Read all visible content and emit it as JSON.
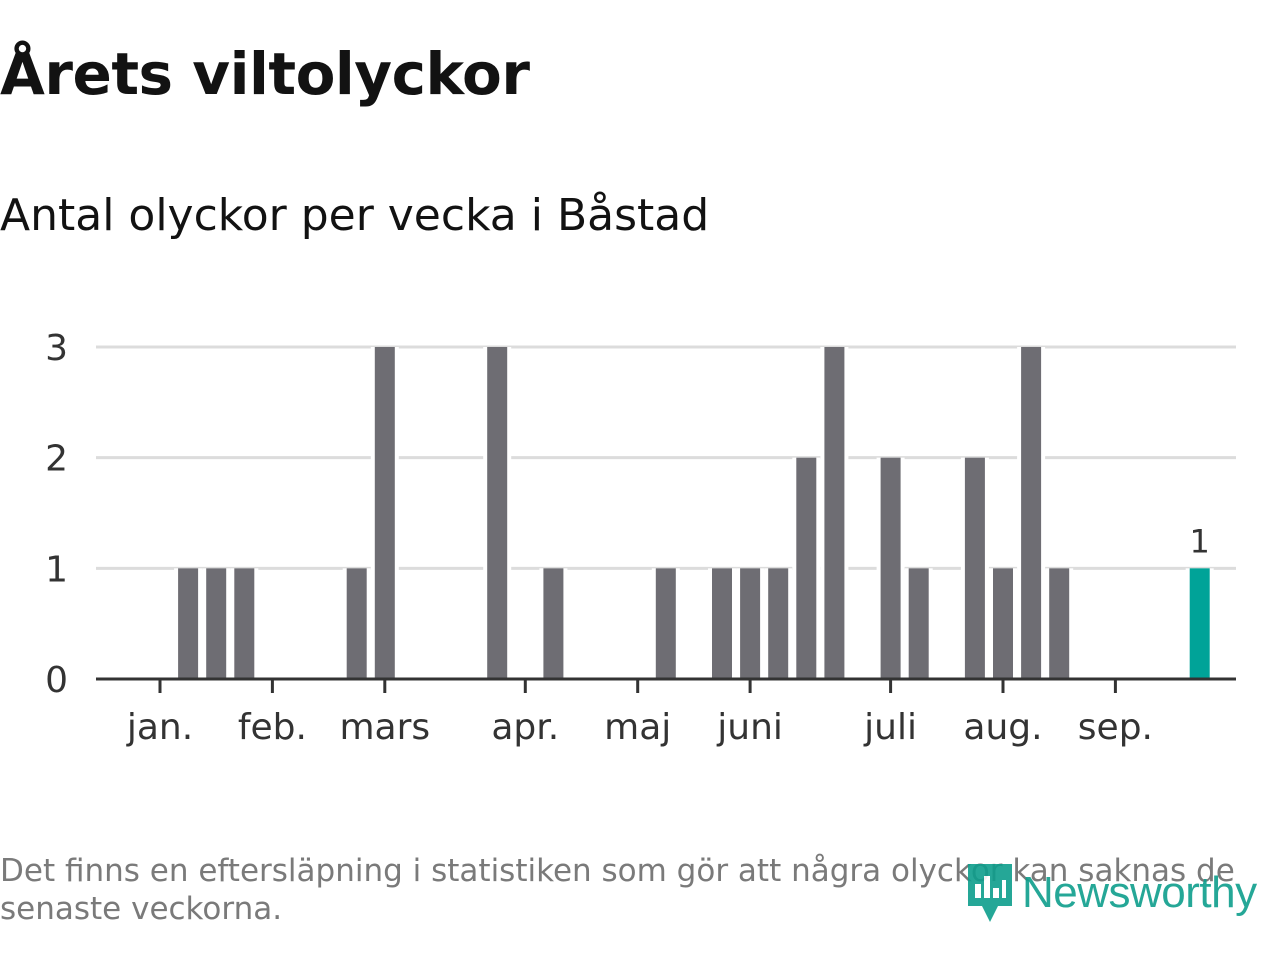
{
  "title": "Årets viltolyckor",
  "subtitle": "Antal olyckor per vecka i Båstad",
  "footnote": "Det finns en eftersläpning i statistiken som gör att några olyckor kan saknas de senaste veckorna.",
  "logo": {
    "text": "Newsworthy",
    "icon": "newsworthy-bar-chart-icon"
  },
  "colors": {
    "bar": "#6e6d73",
    "highlight": "#00a398",
    "grid": "#dcdcdc",
    "axis": "#333333",
    "text": "#333333"
  },
  "chart_data": {
    "type": "bar",
    "title": "Årets viltolyckor",
    "subtitle": "Antal olyckor per vecka i Båstad",
    "xlabel": "",
    "ylabel": "",
    "ylim": [
      0,
      3
    ],
    "yticks": [
      0,
      1,
      2,
      3
    ],
    "grid": true,
    "x_range_weeks": [
      1,
      39
    ],
    "month_ticks": [
      {
        "label": "jan.",
        "week": 1
      },
      {
        "label": "feb.",
        "week": 5
      },
      {
        "label": "mars",
        "week": 9
      },
      {
        "label": "apr.",
        "week": 14
      },
      {
        "label": "maj",
        "week": 18
      },
      {
        "label": "juni",
        "week": 22
      },
      {
        "label": "juli",
        "week": 27
      },
      {
        "label": "aug.",
        "week": 31
      },
      {
        "label": "sep.",
        "week": 35
      }
    ],
    "weeks": [
      1,
      2,
      3,
      4,
      5,
      6,
      7,
      8,
      9,
      10,
      11,
      12,
      13,
      14,
      15,
      16,
      17,
      18,
      19,
      20,
      21,
      22,
      23,
      24,
      25,
      26,
      27,
      28,
      29,
      30,
      31,
      32,
      33,
      34,
      35,
      36,
      37,
      38,
      39
    ],
    "values": [
      0,
      1,
      1,
      1,
      0,
      0,
      0,
      1,
      3,
      0,
      0,
      0,
      3,
      0,
      1,
      0,
      0,
      0,
      1,
      0,
      1,
      1,
      1,
      2,
      3,
      0,
      2,
      1,
      0,
      2,
      1,
      3,
      1,
      0,
      0,
      0,
      0,
      1,
      0
    ],
    "highlight_week": 38,
    "highlight_label": "1"
  }
}
